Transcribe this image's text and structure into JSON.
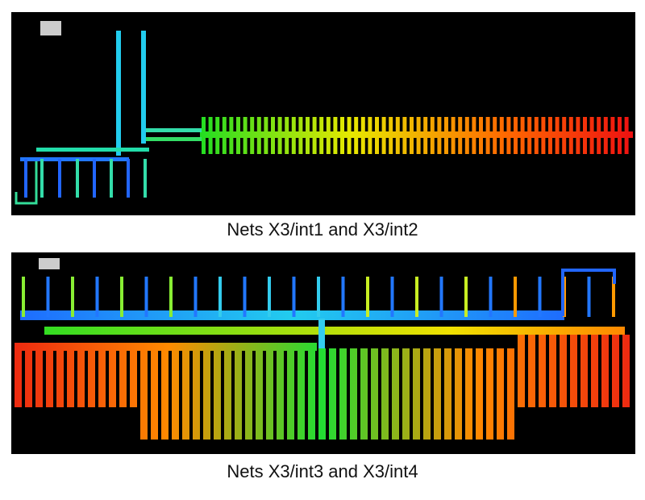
{
  "figure": {
    "panels": [
      {
        "caption": "Nets X3/int1 and X3/int2"
      },
      {
        "caption": "Nets X3/int3 and X3/int4"
      }
    ]
  }
}
